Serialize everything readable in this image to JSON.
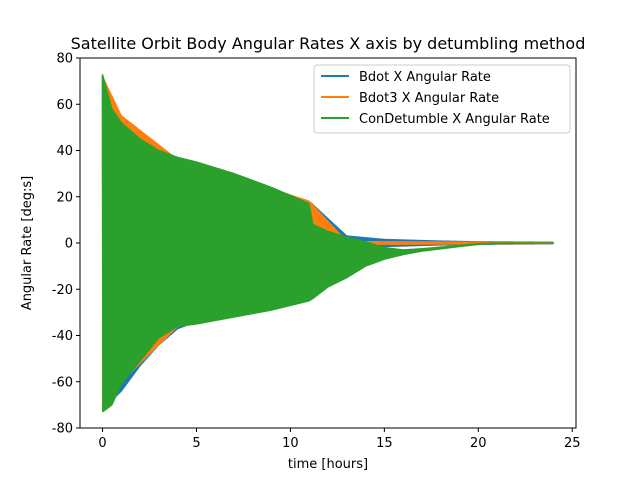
{
  "chart_data": {
    "type": "line",
    "title": "Satellite Orbit Body Angular Rates X axis by detumbling method",
    "xlabel": "time [hours]",
    "ylabel": "Angular Rate [deg:s]",
    "xlim": [
      -1.2,
      25.2
    ],
    "ylim": [
      -80,
      80
    ],
    "xticks": [
      0,
      5,
      10,
      15,
      20,
      25
    ],
    "yticks": [
      -80,
      -60,
      -40,
      -20,
      0,
      20,
      40,
      60,
      80
    ],
    "legend_position": "top-right",
    "series": [
      {
        "name": "Bdot X Angular Rate",
        "color": "#1f77b4",
        "style": "oscillating-envelope",
        "x": [
          0,
          0.5,
          1,
          2,
          3,
          4,
          5,
          8,
          11,
          13,
          15,
          18,
          20,
          24
        ],
        "upper": [
          72,
          60,
          52,
          44,
          39,
          36,
          34,
          26,
          18,
          3,
          1.5,
          0.8,
          0.5,
          0.3
        ],
        "lower": [
          -72,
          -68,
          -64,
          -53,
          -44,
          -37,
          -34,
          -27,
          -19,
          -3,
          -1.5,
          -0.8,
          -0.5,
          -0.3
        ]
      },
      {
        "name": "Bdot3 X Angular Rate",
        "color": "#ff7f0e",
        "style": "oscillating-envelope",
        "x": [
          0,
          1,
          4,
          8,
          11,
          13,
          15,
          18,
          20,
          24
        ],
        "upper": [
          72,
          55,
          36,
          26,
          18,
          0.6,
          0.5,
          0.4,
          0.3,
          0.2
        ],
        "lower": [
          -72,
          -60,
          -36,
          -27,
          -19,
          -0.6,
          -0.5,
          -0.4,
          -0.3,
          -0.2
        ]
      },
      {
        "name": "ConDetumble X Angular Rate",
        "color": "#2ca02c",
        "style": "oscillating-envelope",
        "x": [
          0,
          0.5,
          1,
          2,
          3,
          4,
          5,
          7,
          9,
          11,
          11.2,
          12,
          13,
          14,
          15,
          16,
          17,
          18,
          19,
          20,
          21,
          22,
          23,
          24
        ],
        "upper": [
          73,
          58,
          52,
          45,
          40,
          37,
          35,
          30,
          24,
          17,
          8,
          5,
          2.5,
          0.5,
          -2,
          -3,
          -2.5,
          -1.8,
          -1,
          -0.3,
          0,
          0,
          0,
          0
        ],
        "lower": [
          -73,
          -70,
          -61,
          -51,
          -41,
          -36,
          -35,
          -32,
          -29,
          -25,
          -24,
          -19,
          -15,
          -10,
          -7,
          -5,
          -3.5,
          -2.5,
          -1.5,
          -0.6,
          -0.2,
          -0.1,
          0,
          0
        ]
      }
    ]
  }
}
